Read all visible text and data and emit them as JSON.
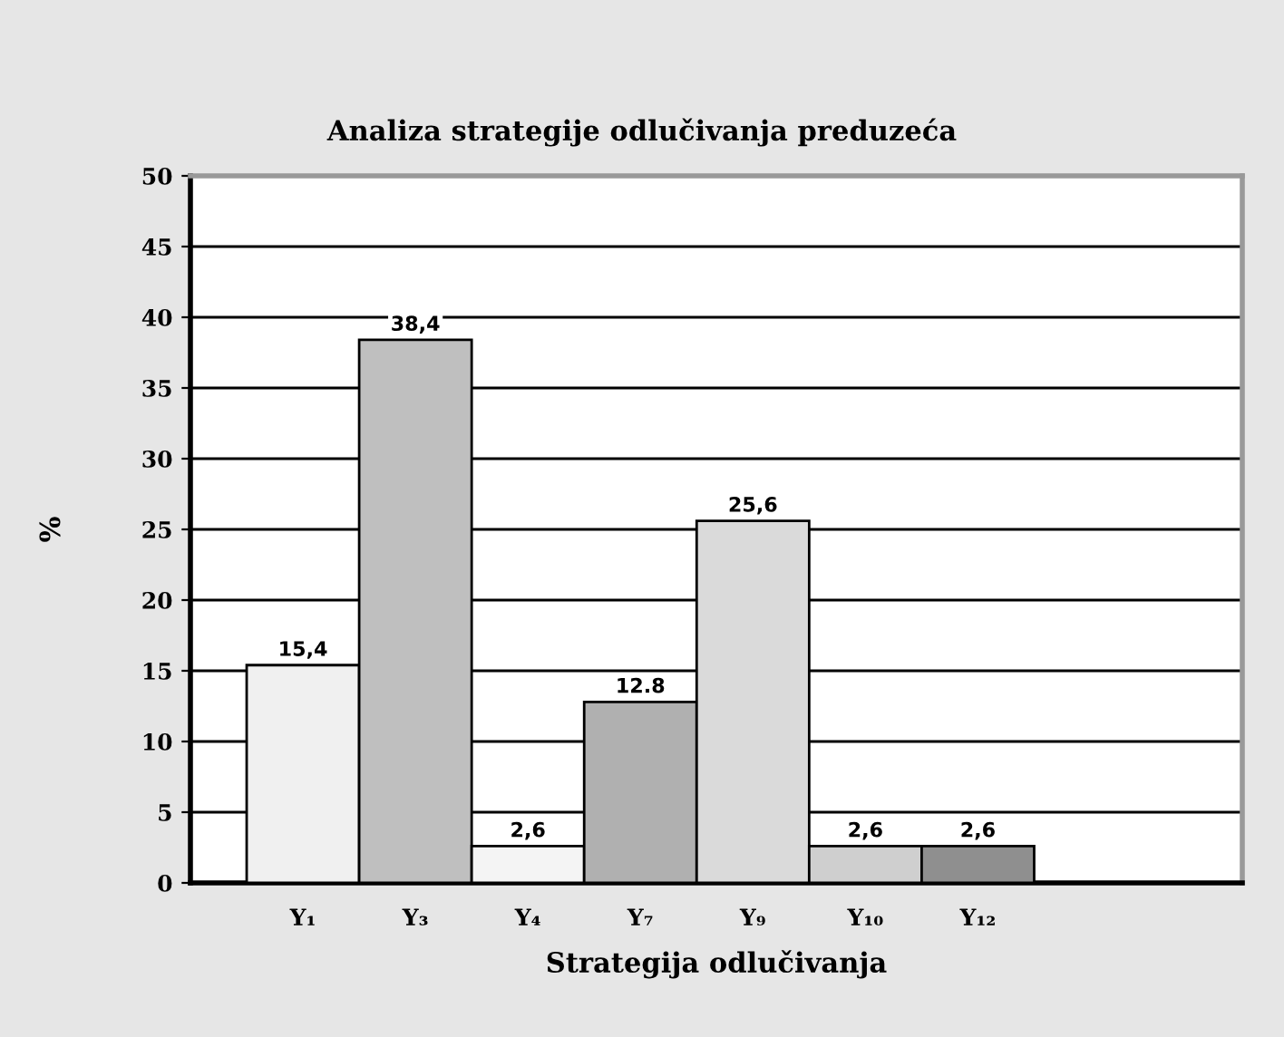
{
  "chart_data": {
    "type": "bar",
    "title": "Analiza strategije odlučivanja preduzeća",
    "xlabel": "Strategija odlučivanja",
    "ylabel": "%",
    "categories": [
      "Y₁",
      "Y₃",
      "Y₄",
      "Y₇",
      "Y₉",
      "Y₁₀",
      "Y₁₂"
    ],
    "values": [
      15.4,
      38.4,
      2.6,
      12.8,
      25.6,
      2.6,
      2.6
    ],
    "value_labels": [
      "15,4",
      "38,4",
      "2,6",
      "12.8",
      "25,6",
      "2,6",
      "2,6"
    ],
    "colors": [
      "#f0f0f0",
      "#bfbfbf",
      "#f4f4f4",
      "#b0b0b0",
      "#dadada",
      "#cfcfcf",
      "#8f8f8f"
    ],
    "ylim": [
      0,
      50
    ],
    "yticks": [
      0,
      5,
      10,
      15,
      20,
      25,
      30,
      35,
      40,
      45,
      50
    ],
    "grid": "y",
    "legend": false
  }
}
